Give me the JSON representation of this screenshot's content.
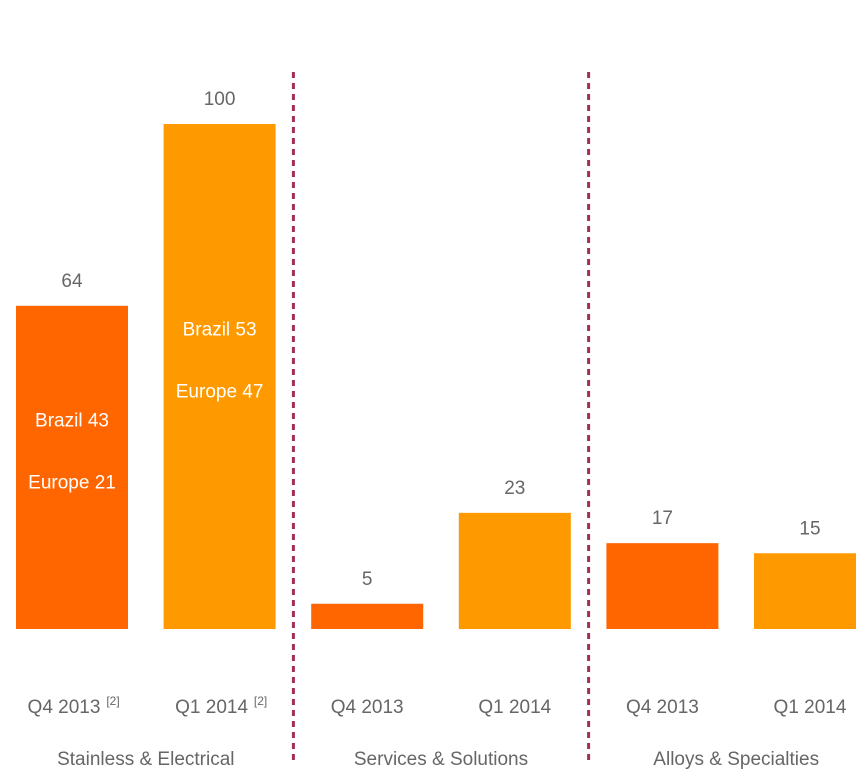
{
  "chart_data": {
    "type": "bar",
    "categories": [
      "Q4 2013",
      "Q1 2014",
      "Q4 2013",
      "Q1 2014",
      "Q4 2013",
      "Q1 2014"
    ],
    "category_notes": [
      "[2]",
      "[2]",
      null,
      null,
      null,
      null
    ],
    "values": [
      64,
      100,
      5,
      23,
      17,
      15
    ],
    "colors": [
      "#ff6600",
      "#ff9900",
      "#ff6600",
      "#ff9900",
      "#ff6600",
      "#ff9900"
    ],
    "groups": [
      "Stainless & Electrical",
      "Services & Solutions",
      "Alloys & Specialties"
    ],
    "bar_annotations": [
      [
        "Brazil 43",
        "Europe 21"
      ],
      [
        "Brazil 53",
        "Europe 47"
      ],
      null,
      null,
      null,
      null
    ],
    "divider_color": "#a0305a"
  }
}
